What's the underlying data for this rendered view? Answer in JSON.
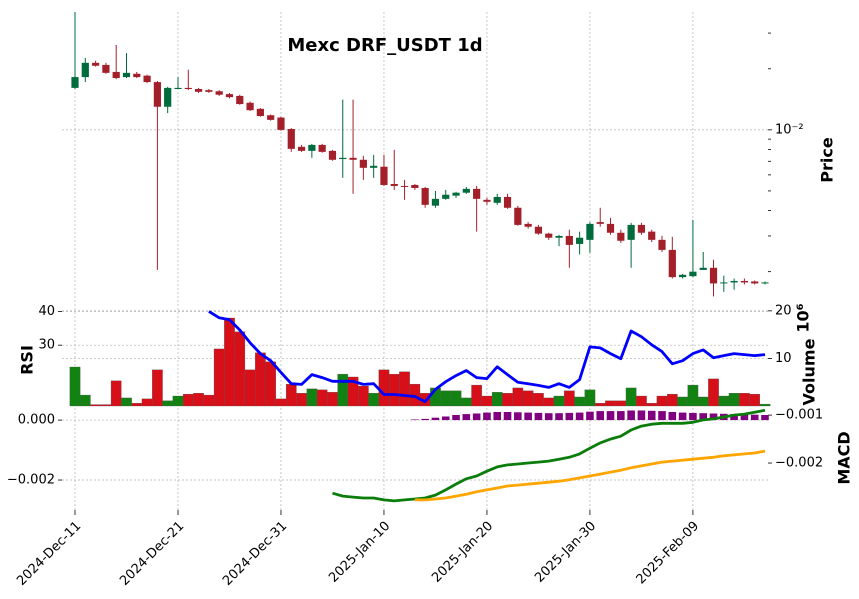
{
  "chart_data": [
    {
      "type": "candlestick",
      "title": "Mexc DRF_USDT 1d",
      "categories": [
        "2024-Dec-11",
        null,
        null,
        null,
        null,
        null,
        null,
        null,
        null,
        null,
        "2024-Dec-21",
        null,
        null,
        null,
        null,
        null,
        null,
        null,
        null,
        null,
        "2024-Dec-31",
        null,
        null,
        null,
        null,
        null,
        null,
        null,
        null,
        null,
        "2025-Jan-10",
        null,
        null,
        null,
        null,
        null,
        null,
        null,
        null,
        null,
        "2025-Jan-20",
        null,
        null,
        null,
        null,
        null,
        null,
        null,
        null,
        null,
        "2025-Jan-30",
        null,
        null,
        null,
        null,
        null,
        null,
        null,
        null,
        null,
        "2025-Feb-09",
        null,
        null,
        null,
        null,
        null,
        null,
        null
      ],
      "open": [
        0.0161,
        0.0182,
        0.0214,
        0.0209,
        0.0193,
        0.0182,
        0.0189,
        0.0185,
        0.0172,
        0.013,
        0.0159,
        0.0161,
        0.0159,
        0.0157,
        0.0155,
        0.015,
        0.0147,
        0.0136,
        0.0127,
        0.0118,
        0.0115,
        0.0101,
        0.00825,
        0.00788,
        0.00843,
        0.00788,
        0.00718,
        0.00728,
        0.00712,
        0.0065,
        0.00658,
        0.00541,
        0.00529,
        0.00535,
        0.00517,
        0.00423,
        0.00457,
        0.00474,
        0.0049,
        0.00512,
        0.00452,
        0.00437,
        0.00467,
        0.00413,
        0.00344,
        0.00333,
        0.00308,
        0.00294,
        0.003,
        0.00274,
        0.00287,
        0.00351,
        0.00344,
        0.00311,
        0.00287,
        0.0034,
        0.00315,
        0.00287,
        0.00256,
        0.00188,
        0.0019,
        0.00204,
        0.00209,
        0.00175,
        0.00177,
        0.0018,
        0.00179,
        0.00175
      ],
      "high": [
        0.0381,
        0.0226,
        0.0219,
        0.0214,
        0.0262,
        0.0239,
        0.0193,
        0.0187,
        0.0174,
        0.0163,
        0.0182,
        0.0198,
        0.0161,
        0.0159,
        0.0157,
        0.0152,
        0.0149,
        0.0138,
        0.0128,
        0.0119,
        0.0116,
        0.0102,
        0.00843,
        0.00853,
        0.00853,
        0.00797,
        0.0141,
        0.0141,
        0.00745,
        0.00753,
        0.00753,
        0.00797,
        0.00567,
        0.00541,
        0.00523,
        0.005,
        0.00506,
        0.00495,
        0.00523,
        0.00529,
        0.00462,
        0.00484,
        0.00484,
        0.00422,
        0.00351,
        0.0034,
        0.00311,
        0.00304,
        0.00322,
        0.00315,
        0.00351,
        0.00413,
        0.00368,
        0.00322,
        0.00348,
        0.00348,
        0.00322,
        0.003,
        0.00297,
        0.00195,
        0.0036,
        0.0025,
        0.00229,
        0.00191,
        0.00185,
        0.00185,
        0.00181,
        0.00179
      ],
      "low": [
        0.0159,
        0.0172,
        0.0205,
        0.0189,
        0.0178,
        0.018,
        0.018,
        0.017,
        0.00204,
        0.0121,
        0.0159,
        0.0157,
        0.0152,
        0.0152,
        0.0147,
        0.0143,
        0.0133,
        0.0124,
        0.0116,
        0.0111,
        0.00989,
        0.00779,
        0.00779,
        0.00728,
        0.00771,
        0.00704,
        0.0058,
        0.00484,
        0.00567,
        0.0058,
        0.00529,
        0.00506,
        0.00452,
        0.00506,
        0.00413,
        0.00413,
        0.00452,
        0.00462,
        0.00484,
        0.00315,
        0.00427,
        0.00427,
        0.00408,
        0.00337,
        0.00326,
        0.00304,
        0.00287,
        0.00267,
        0.00209,
        0.00243,
        0.00248,
        0.00333,
        0.00304,
        0.00277,
        0.00209,
        0.00304,
        0.0028,
        0.0025,
        0.00185,
        0.00185,
        0.00188,
        0.00204,
        0.00151,
        0.00159,
        0.00163,
        0.00173,
        0.00173,
        0.00173
      ],
      "close": [
        0.0182,
        0.0214,
        0.0207,
        0.0191,
        0.018,
        0.0191,
        0.0182,
        0.0172,
        0.013,
        0.0161,
        0.0161,
        0.0159,
        0.0154,
        0.0154,
        0.0149,
        0.0145,
        0.0134,
        0.0125,
        0.0117,
        0.0112,
        0.01,
        0.00806,
        0.00788,
        0.00843,
        0.00779,
        0.00712,
        0.00728,
        0.00712,
        0.0065,
        0.00665,
        0.00535,
        0.00529,
        0.00523,
        0.00517,
        0.00427,
        0.00457,
        0.00479,
        0.0049,
        0.00512,
        0.00457,
        0.00442,
        0.00467,
        0.00413,
        0.0034,
        0.00333,
        0.00308,
        0.00294,
        0.003,
        0.00271,
        0.00294,
        0.00344,
        0.00344,
        0.00311,
        0.00284,
        0.0034,
        0.00311,
        0.00287,
        0.00256,
        0.00188,
        0.00193,
        0.002,
        0.00209,
        0.00175,
        0.00177,
        0.0018,
        0.00177,
        0.00175,
        0.00177
      ],
      "up_color": "#006b3c",
      "down_color": "#a3202b",
      "log_scale": true,
      "ylim": [
        0.00145,
        0.0381
      ],
      "yticks": [
        {
          "value": 0.01,
          "label": "10⁻²"
        }
      ],
      "minor_yticks": [
        0.002,
        0.003,
        0.004,
        0.005,
        0.006,
        0.007,
        0.008,
        0.009,
        0.02,
        0.03
      ],
      "ylabel": "Price",
      "grid": true
    },
    {
      "type": "rsi_volume",
      "ylabel": "RSI",
      "ylim": [
        12,
        41
      ],
      "yticks": [
        30,
        40
      ],
      "rsi": {
        "color": "#0000ff",
        "values": [
          null,
          null,
          null,
          null,
          null,
          null,
          null,
          null,
          null,
          null,
          null,
          null,
          null,
          40.0,
          38.1,
          37.5,
          34.5,
          30.7,
          27.5,
          25.4,
          21.9,
          18.6,
          18.4,
          21.3,
          20.4,
          19.3,
          19.3,
          19.3,
          18.4,
          18.6,
          15.4,
          15.4,
          15.1,
          14.8,
          13.3,
          16.9,
          19.2,
          21.0,
          22.5,
          20.4,
          20.1,
          23.6,
          21.3,
          19.0,
          18.6,
          18.1,
          17.5,
          18.6,
          17.5,
          19.8,
          29.5,
          29.2,
          27.5,
          26.0,
          34.2,
          32.5,
          30.1,
          28.1,
          24.5,
          25.4,
          27.5,
          28.6,
          26.3,
          26.9,
          27.5,
          27.2,
          26.9,
          27.2
        ]
      },
      "volume": {
        "axis": "y2",
        "up_color": "#128212",
        "down_color": "#d60f18",
        "values": [
          8.2,
          2.3,
          0.3,
          0.3,
          5.3,
          1.7,
          0.6,
          1.5,
          7.6,
          1.1,
          2.1,
          2.5,
          2.7,
          2.3,
          12.0,
          18.5,
          15.6,
          7.6,
          11.2,
          9.3,
          1.5,
          4.6,
          2.7,
          3.6,
          3.4,
          2.9,
          6.7,
          6.1,
          4.2,
          2.7,
          7.6,
          6.7,
          7.2,
          4.6,
          2.7,
          3.8,
          3.2,
          3.2,
          1.7,
          4.4,
          2.1,
          2.9,
          2.7,
          3.8,
          3.2,
          2.7,
          1.7,
          2.1,
          3.2,
          1.9,
          3.4,
          0.6,
          1.1,
          1.1,
          3.8,
          2.1,
          0.6,
          2.1,
          2.5,
          1.9,
          4.4,
          1.9,
          5.7,
          2.1,
          2.7,
          2.7,
          2.5,
          0.4
        ]
      },
      "y2label": "Volume",
      "y2_offset_label": "10⁶",
      "y2lim": [
        0,
        20.6
      ],
      "y2ticks": [
        10,
        20
      ],
      "grid": true
    },
    {
      "type": "macd",
      "ylim": [
        -0.003,
        0.00047
      ],
      "yticks": [
        {
          "value": 0,
          "label": "0.000"
        },
        {
          "value": -0.002,
          "label": "−0.002"
        }
      ],
      "y2label": "MACD",
      "y2lim": [
        -0.00298,
        -0.00081
      ],
      "y2ticks": [
        {
          "value": -0.001,
          "label": "−0.001"
        },
        {
          "value": -0.002,
          "label": "−0.002"
        }
      ],
      "histogram": {
        "color": "#800080",
        "values": [
          null,
          null,
          null,
          null,
          null,
          null,
          null,
          null,
          null,
          null,
          null,
          null,
          null,
          null,
          null,
          null,
          null,
          null,
          null,
          null,
          null,
          null,
          null,
          null,
          null,
          null,
          null,
          null,
          null,
          null,
          null,
          null,
          null,
          2e-05,
          4e-05,
          8e-05,
          0.00012,
          0.00017,
          0.0002,
          0.00022,
          0.00025,
          0.00027,
          0.00027,
          0.00026,
          0.00025,
          0.00024,
          0.00023,
          0.00023,
          0.00024,
          0.00025,
          0.00028,
          0.0003,
          0.0003,
          0.0003,
          0.00032,
          0.00032,
          0.00031,
          0.0003,
          0.00027,
          0.00025,
          0.00024,
          0.00023,
          0.00022,
          0.00021,
          0.0002,
          0.00019,
          0.00018,
          0.00017
        ]
      },
      "macd": {
        "axis": "y2",
        "color": "#0a7d0a",
        "values": [
          null,
          null,
          null,
          null,
          null,
          null,
          null,
          null,
          null,
          null,
          null,
          null,
          null,
          null,
          null,
          null,
          null,
          null,
          null,
          null,
          null,
          null,
          null,
          null,
          null,
          -0.00263,
          -0.00269,
          -0.00271,
          -0.00273,
          -0.00273,
          -0.00277,
          -0.00279,
          -0.00277,
          -0.00275,
          -0.00273,
          -0.00267,
          -0.00256,
          -0.00244,
          -0.00233,
          -0.00227,
          -0.00217,
          -0.00208,
          -0.00204,
          -0.00202,
          -0.002,
          -0.00198,
          -0.00196,
          -0.00192,
          -0.00188,
          -0.00181,
          -0.00169,
          -0.00158,
          -0.0015,
          -0.00144,
          -0.00131,
          -0.00123,
          -0.00119,
          -0.00117,
          -0.00117,
          -0.00117,
          -0.00115,
          -0.0011,
          -0.00108,
          -0.00104,
          -0.001,
          -0.00098,
          -0.00094,
          -0.0009
        ]
      },
      "signal": {
        "axis": "y2",
        "color": "#ffa500",
        "values": [
          null,
          null,
          null,
          null,
          null,
          null,
          null,
          null,
          null,
          null,
          null,
          null,
          null,
          null,
          null,
          null,
          null,
          null,
          null,
          null,
          null,
          null,
          null,
          null,
          null,
          null,
          null,
          null,
          null,
          null,
          null,
          null,
          null,
          -0.00277,
          -0.00277,
          -0.00275,
          -0.00273,
          -0.00269,
          -0.00265,
          -0.0026,
          -0.00256,
          -0.00252,
          -0.00248,
          -0.00246,
          -0.00244,
          -0.00242,
          -0.0024,
          -0.00238,
          -0.00235,
          -0.00231,
          -0.00227,
          -0.00223,
          -0.00219,
          -0.00215,
          -0.0021,
          -0.00206,
          -0.00202,
          -0.00198,
          -0.00196,
          -0.00194,
          -0.00192,
          -0.0019,
          -0.00188,
          -0.00185,
          -0.00183,
          -0.00181,
          -0.00179,
          -0.00175
        ]
      },
      "grid": true
    }
  ]
}
